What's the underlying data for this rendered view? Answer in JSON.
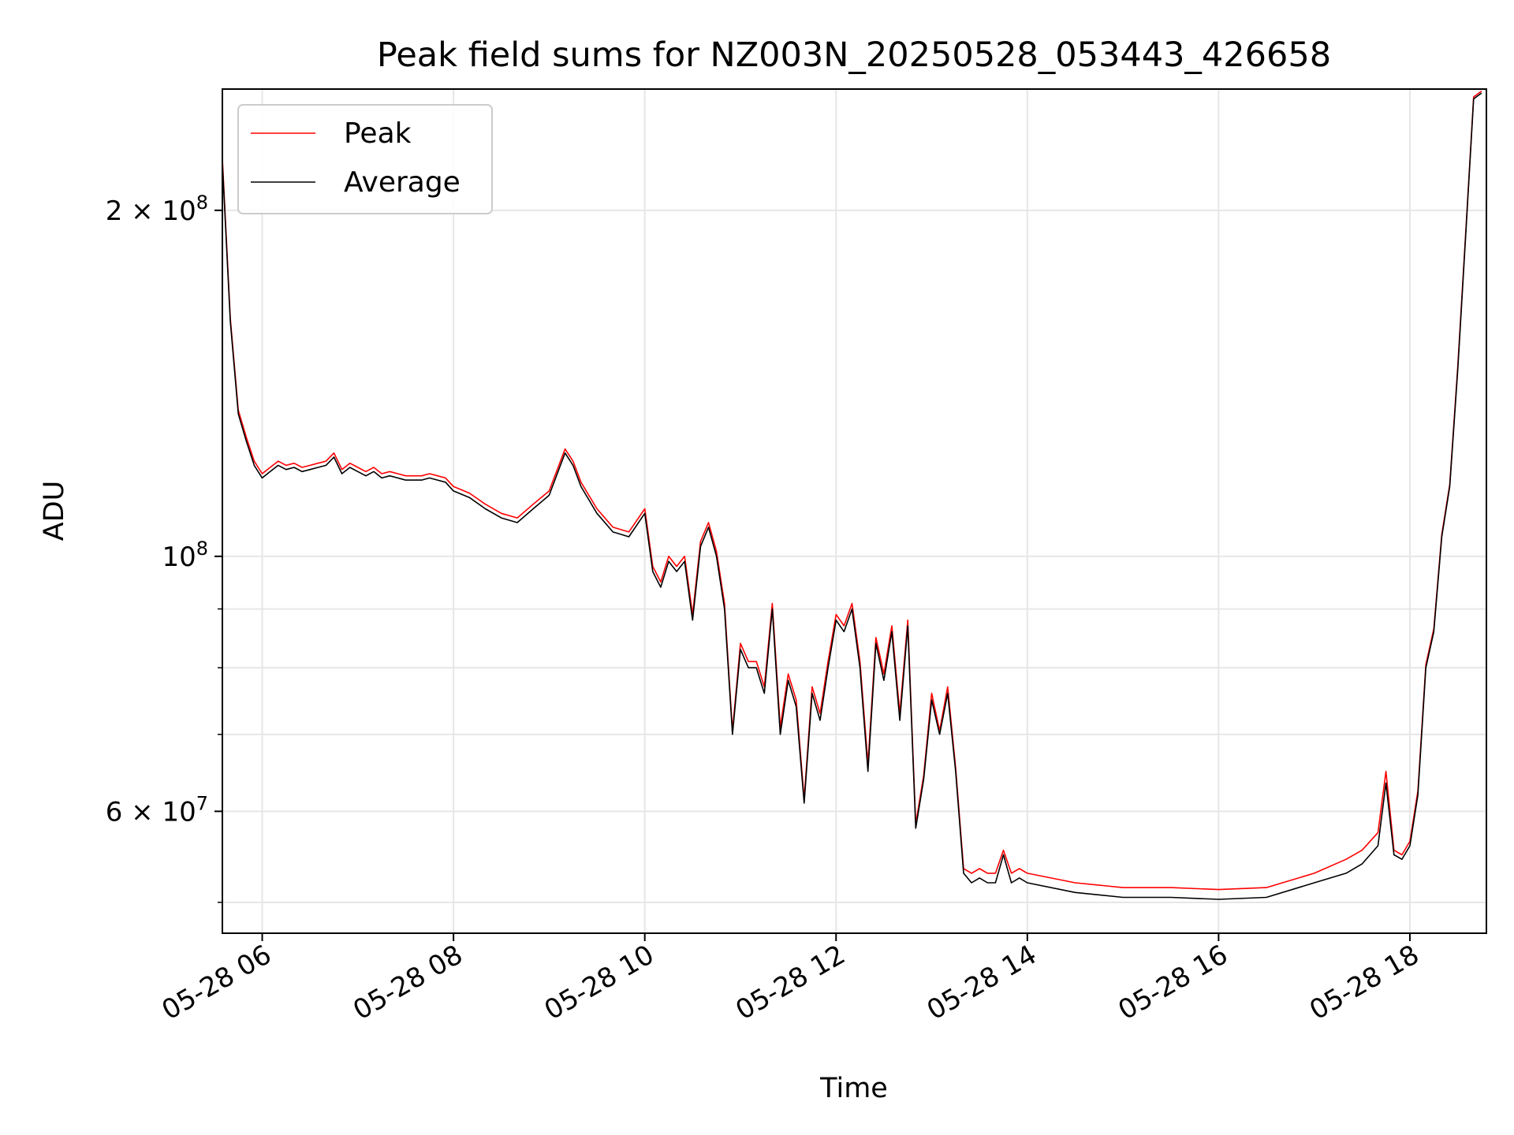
{
  "chart_data": {
    "type": "line",
    "title": "Peak field sums for NZ003N_20250528_053443_426658",
    "xlabel": "Time",
    "ylabel": "ADU",
    "y_scale": "log",
    "ylim": [
      47000000,
      255000000
    ],
    "xlim": [
      "2025-05-28 05:35",
      "2025-05-28 18:48"
    ],
    "grid": true,
    "legend_placement": "upper-left",
    "x_tick_labels": [
      "05-28 06",
      "05-28 08",
      "05-28 10",
      "05-28 12",
      "05-28 14",
      "05-28 16",
      "05-28 18"
    ],
    "x_tick_values": [
      "2025-05-28 06:00",
      "2025-05-28 08:00",
      "2025-05-28 10:00",
      "2025-05-28 12:00",
      "2025-05-28 14:00",
      "2025-05-28 16:00",
      "2025-05-28 18:00"
    ],
    "y_major_ticks": [
      {
        "value": 200000000,
        "mantissa": "2",
        "exponent": "8"
      },
      {
        "value": 100000000,
        "mantissa": "",
        "exponent": "8"
      },
      {
        "value": 60000000,
        "mantissa": "6",
        "exponent": "7"
      }
    ],
    "y_minor_ticks": [
      50000000,
      70000000,
      80000000,
      90000000
    ],
    "series": [
      {
        "name": "Peak",
        "color": "#ff0000",
        "role": "peak"
      },
      {
        "name": "Average",
        "color": "#000000",
        "role": "average"
      }
    ],
    "x": [
      "05:35",
      "05:40",
      "05:45",
      "05:50",
      "05:55",
      "06:00",
      "06:05",
      "06:10",
      "06:15",
      "06:20",
      "06:25",
      "06:30",
      "06:35",
      "06:40",
      "06:45",
      "06:50",
      "06:55",
      "07:00",
      "07:05",
      "07:10",
      "07:15",
      "07:20",
      "07:25",
      "07:30",
      "07:35",
      "07:40",
      "07:45",
      "07:50",
      "07:55",
      "08:00",
      "08:10",
      "08:20",
      "08:30",
      "08:40",
      "08:50",
      "09:00",
      "09:10",
      "09:15",
      "09:20",
      "09:30",
      "09:40",
      "09:50",
      "10:00",
      "10:05",
      "10:10",
      "10:15",
      "10:20",
      "10:25",
      "10:30",
      "10:35",
      "10:40",
      "10:45",
      "10:50",
      "10:55",
      "11:00",
      "11:05",
      "11:10",
      "11:15",
      "11:20",
      "11:25",
      "11:30",
      "11:35",
      "11:40",
      "11:45",
      "11:50",
      "11:55",
      "12:00",
      "12:05",
      "12:10",
      "12:15",
      "12:20",
      "12:25",
      "12:30",
      "12:35",
      "12:40",
      "12:45",
      "12:50",
      "12:55",
      "13:00",
      "13:05",
      "13:10",
      "13:15",
      "13:20",
      "13:25",
      "13:30",
      "13:35",
      "13:40",
      "13:45",
      "13:50",
      "13:55",
      "14:00",
      "14:30",
      "15:00",
      "15:30",
      "16:00",
      "16:30",
      "17:00",
      "17:20",
      "17:30",
      "17:40",
      "17:45",
      "17:50",
      "17:55",
      "18:00",
      "18:05",
      "18:10",
      "18:15",
      "18:20",
      "18:25",
      "18:30",
      "18:35",
      "18:40",
      "18:45"
    ],
    "average_values": [
      220000000,
      160000000,
      133000000,
      126000000,
      120000000,
      117000000,
      118500000,
      120000000,
      119000000,
      119500000,
      118500000,
      119000000,
      119500000,
      120000000,
      122000000,
      118000000,
      119500000,
      118500000,
      117500000,
      118500000,
      117000000,
      117500000,
      117000000,
      116500000,
      116500000,
      116500000,
      117000000,
      116500000,
      116000000,
      114000000,
      112500000,
      110000000,
      108000000,
      107000000,
      110000000,
      113000000,
      123000000,
      120000000,
      115000000,
      109000000,
      105000000,
      104000000,
      109000000,
      97000000,
      94000000,
      99000000,
      97000000,
      99000000,
      88000000,
      102000000,
      106000000,
      100000000,
      90000000,
      70000000,
      83000000,
      80000000,
      80000000,
      76000000,
      90000000,
      70000000,
      78000000,
      74000000,
      61000000,
      76000000,
      72000000,
      80000000,
      88000000,
      86000000,
      90000000,
      80000000,
      65000000,
      84000000,
      78000000,
      86000000,
      72000000,
      87000000,
      58000000,
      64000000,
      75000000,
      70000000,
      76000000,
      65000000,
      53000000,
      52000000,
      52500000,
      52000000,
      52000000,
      55000000,
      52000000,
      52500000,
      52000000,
      51000000,
      50500000,
      50500000,
      50300000,
      50500000,
      52000000,
      53000000,
      54000000,
      56000000,
      63500000,
      55000000,
      54500000,
      56000000,
      62000000,
      80000000,
      86000000,
      104000000,
      115000000,
      145000000,
      190000000,
      250000000,
      253000000
    ],
    "peak_values": [
      222000000,
      161000000,
      134000000,
      127000000,
      121000000,
      118000000,
      119500000,
      121000000,
      120000000,
      120500000,
      119500000,
      120000000,
      120500000,
      121000000,
      123000000,
      119000000,
      120500000,
      119500000,
      118500000,
      119500000,
      118000000,
      118500000,
      118000000,
      117500000,
      117500000,
      117500000,
      118000000,
      117500000,
      117000000,
      115000000,
      113500000,
      111000000,
      109000000,
      108000000,
      111000000,
      114000000,
      124000000,
      121000000,
      116000000,
      110000000,
      106000000,
      105000000,
      110000000,
      98000000,
      95000000,
      100000000,
      98000000,
      100000000,
      89000000,
      103000000,
      107000000,
      101000000,
      91000000,
      70500000,
      84000000,
      81000000,
      81000000,
      77000000,
      91000000,
      71000000,
      79000000,
      75000000,
      61500000,
      77000000,
      73000000,
      81000000,
      89000000,
      87000000,
      91000000,
      81000000,
      66000000,
      85000000,
      79000000,
      87000000,
      73000000,
      88000000,
      58500000,
      64500000,
      76000000,
      70500000,
      77000000,
      65500000,
      53500000,
      53000000,
      53500000,
      53000000,
      53000000,
      55500000,
      53000000,
      53500000,
      53000000,
      52000000,
      51500000,
      51500000,
      51300000,
      51500000,
      53000000,
      54500000,
      55500000,
      57500000,
      65000000,
      55500000,
      55000000,
      56500000,
      62500000,
      80500000,
      86500000,
      104500000,
      115500000,
      146000000,
      191000000,
      251000000,
      254000000
    ]
  }
}
